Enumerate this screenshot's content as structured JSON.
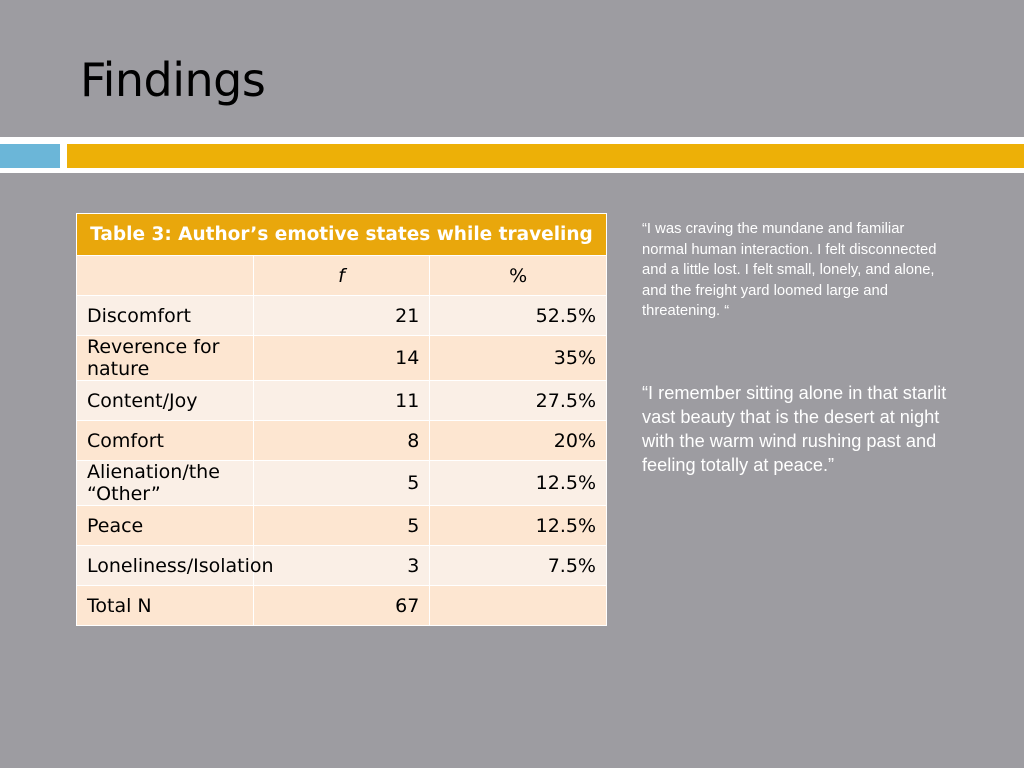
{
  "slide": {
    "title": "Findings"
  },
  "colors": {
    "background": "#9d9ca1",
    "accent_blue": "#6bb6d8",
    "accent_gold": "#edb007",
    "table_header": "#e9a70c",
    "row_dark": "#fde6d1",
    "row_light": "#faefe6"
  },
  "table": {
    "caption": "Table 3: Author’s emotive states while traveling",
    "headers": {
      "label": "",
      "f": "f",
      "pct": "%"
    },
    "rows": [
      {
        "label": "Discomfort",
        "f": "21",
        "pct": "52.5%"
      },
      {
        "label": "Reverence for nature",
        "f": "14",
        "pct": "35%"
      },
      {
        "label": "Content/Joy",
        "f": "11",
        "pct": "27.5%"
      },
      {
        "label": "Comfort",
        "f": "8",
        "pct": "20%"
      },
      {
        "label": "Alienation/the “Other”",
        "f": "5",
        "pct": "12.5%"
      },
      {
        "label": "Peace",
        "f": "5",
        "pct": "12.5%"
      },
      {
        "label": "Loneliness/Isolation",
        "f": "3",
        "pct": "7.5%"
      },
      {
        "label": "Total N",
        "f": "67",
        "pct": ""
      }
    ]
  },
  "quotes": [
    "“I was craving the mundane and familiar normal human interaction. I felt disconnected and a little lost. I felt small, lonely, and alone, and the freight yard loomed large and threatening. “",
    "“I remember sitting alone in that starlit vast beauty that is the desert at night with the warm wind rushing past and feeling totally at peace.”"
  ]
}
